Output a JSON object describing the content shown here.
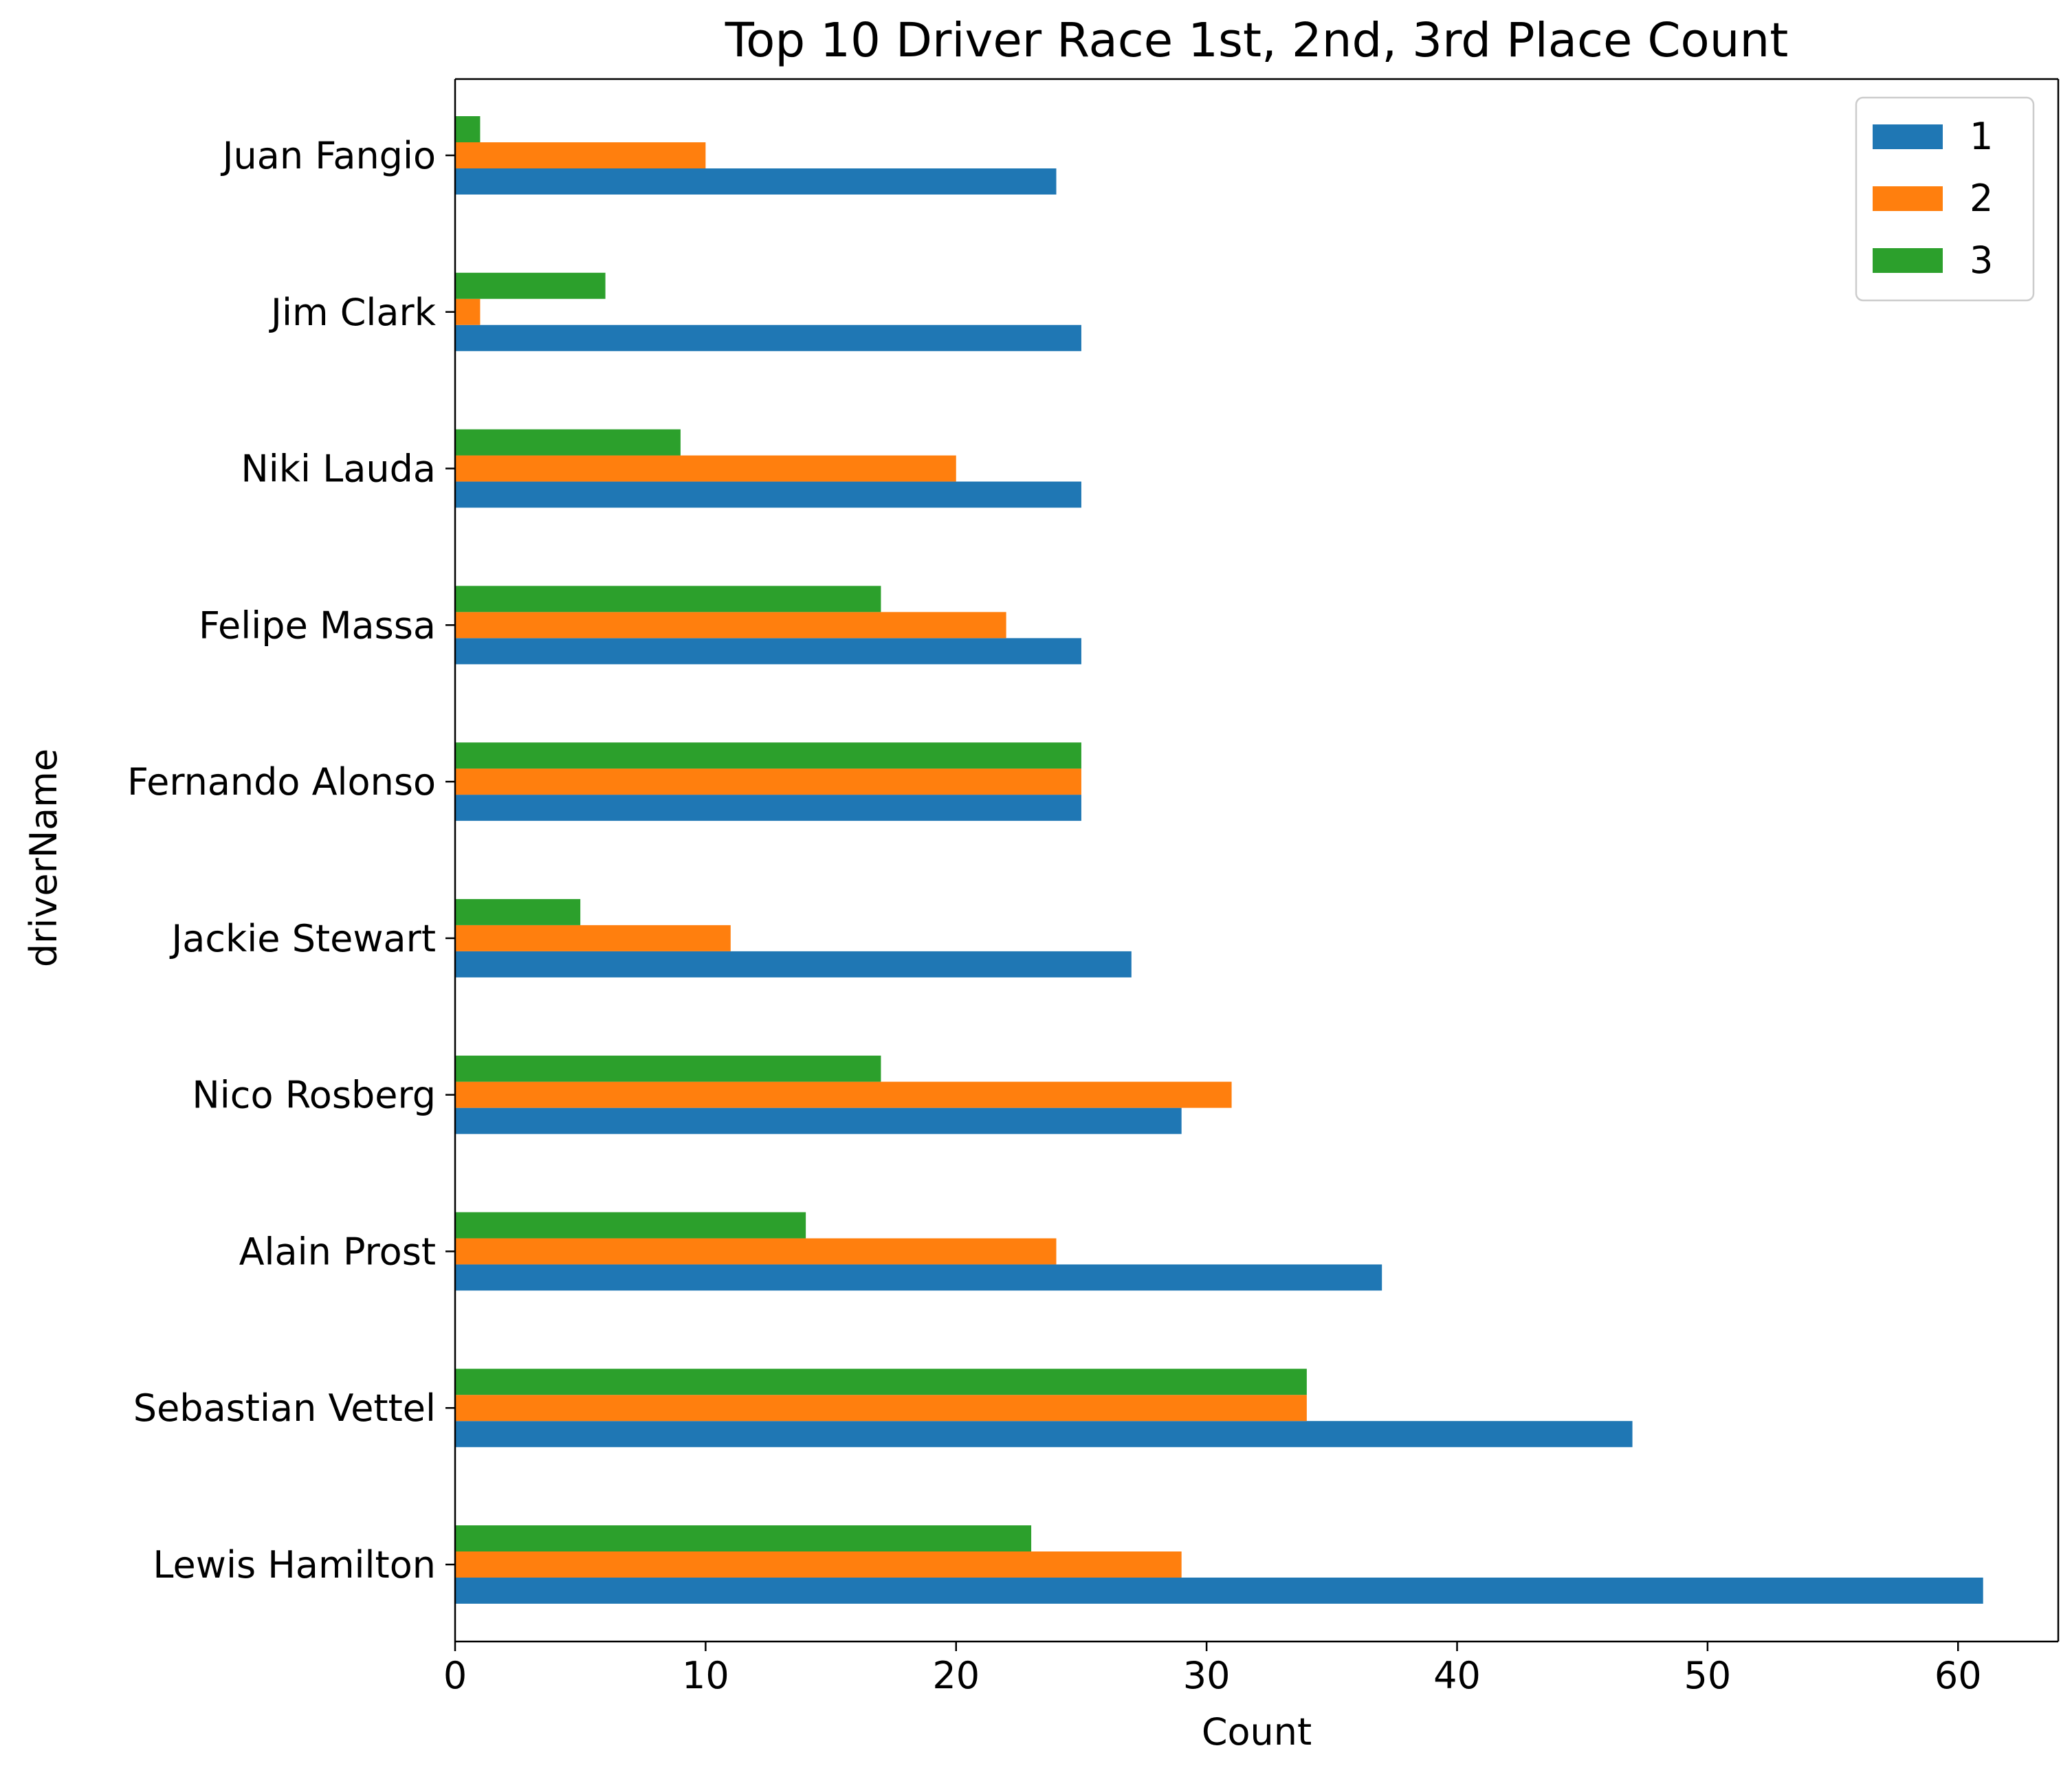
{
  "chart_data": {
    "type": "bar",
    "orientation": "horizontal",
    "title": "Top 10 Driver Race 1st, 2nd, 3rd Place Count",
    "xlabel": "Count",
    "ylabel": "driverName",
    "xlim": [
      0,
      64
    ],
    "xticks": [
      0,
      10,
      20,
      30,
      40,
      50,
      60
    ],
    "grid": false,
    "legend_position": "top-right",
    "categories": [
      "Lewis Hamilton",
      "Sebastian Vettel",
      "Alain Prost",
      "Nico Rosberg",
      "Jackie Stewart",
      "Fernando Alonso",
      "Felipe Massa",
      "Niki Lauda",
      "Jim Clark",
      "Juan Fangio"
    ],
    "series": [
      {
        "name": "1",
        "color": "#1f77b4",
        "values": [
          61,
          47,
          37,
          29,
          27,
          25,
          25,
          25,
          25,
          24
        ]
      },
      {
        "name": "2",
        "color": "#ff7f0e",
        "values": [
          29,
          34,
          24,
          31,
          11,
          25,
          22,
          20,
          1,
          10
        ]
      },
      {
        "name": "3",
        "color": "#2ca02c",
        "values": [
          23,
          34,
          14,
          17,
          5,
          25,
          17,
          9,
          6,
          1
        ]
      }
    ]
  }
}
